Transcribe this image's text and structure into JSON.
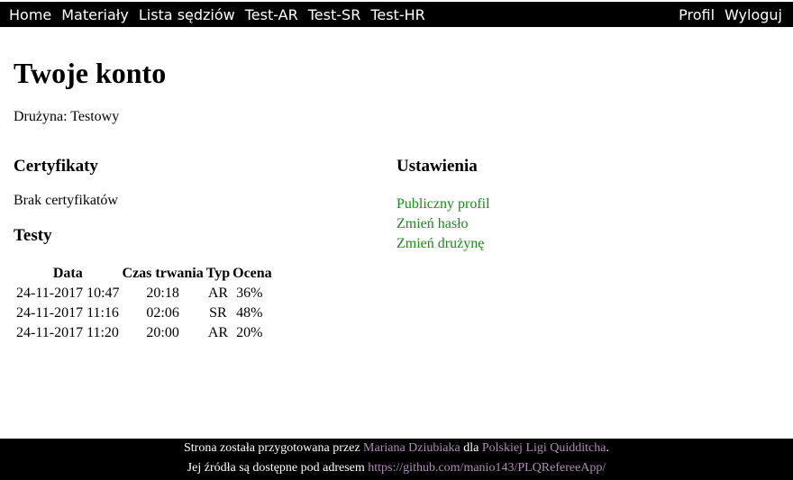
{
  "nav": {
    "left": [
      "Home",
      "Materiały",
      "Lista sędziów",
      "Test-AR",
      "Test-SR",
      "Test-HR"
    ],
    "right": [
      "Profil",
      "Wyloguj"
    ]
  },
  "page": {
    "title": "Twoje konto",
    "team_label": "Drużyna:",
    "team_value": "Testowy"
  },
  "certificates": {
    "heading": "Certyfikaty",
    "empty_text": "Brak certyfikatów"
  },
  "tests": {
    "heading": "Testy",
    "columns": [
      "Data",
      "Czas trwania",
      "Typ",
      "Ocena"
    ],
    "rows": [
      [
        "24-11-2017 10:47",
        "20:18",
        "AR",
        "36%"
      ],
      [
        "24-11-2017 11:16",
        "02:06",
        "SR",
        "48%"
      ],
      [
        "24-11-2017 11:20",
        "20:00",
        "AR",
        "20%"
      ]
    ]
  },
  "settings": {
    "heading": "Ustawienia",
    "links": [
      "Publiczny profil",
      "Zmień hasło",
      "Zmień drużynę"
    ]
  },
  "footer": {
    "line1_prefix": "Strona została przygotowana przez",
    "author": "Mariana Dziubiaka",
    "line1_mid": "dla",
    "org": "Polskiej Ligi Quidditcha",
    "line1_suffix": ".",
    "line2_prefix": "Jej źródła są dostępne pod adresem",
    "repo_url": "https://github.com/manio143/PLQRefereeApp/"
  },
  "colors": {
    "nav_bg": "#000000",
    "nav_text": "#ffffff",
    "settings_link": "#1a8a1a",
    "footer_link": "#b08ab8"
  }
}
